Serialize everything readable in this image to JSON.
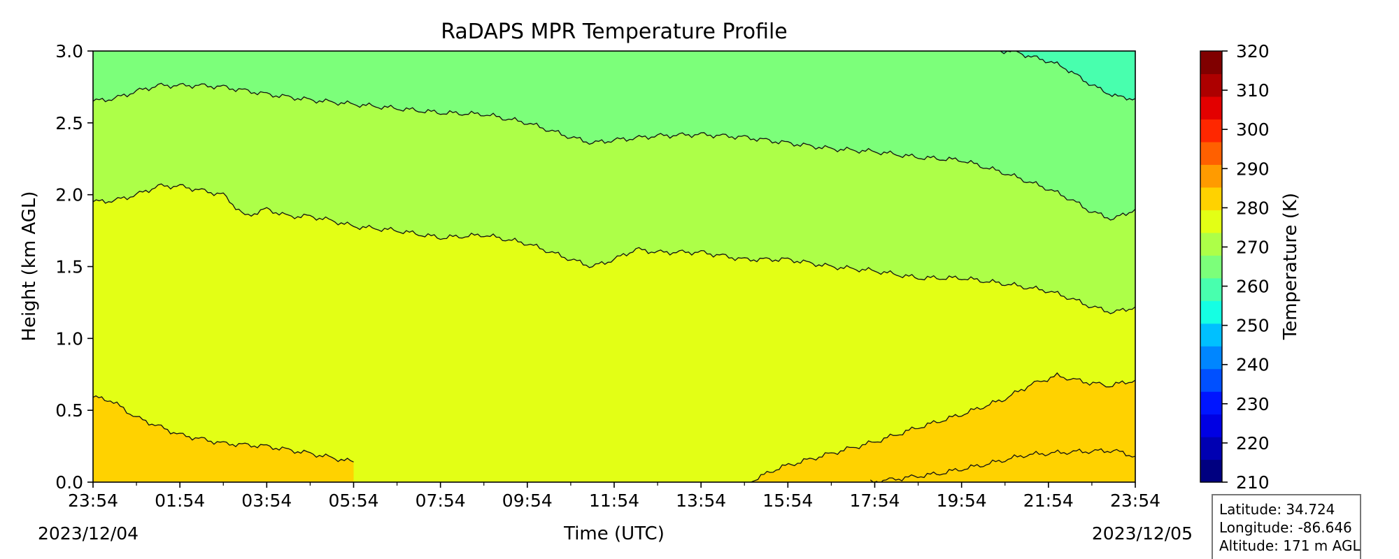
{
  "chart_data": {
    "type": "heatmap",
    "title": "RaDAPS MPR Temperature Profile",
    "xlabel": "Time (UTC)",
    "ylabel": "Height (km AGL)",
    "x_ticks": [
      "23:54",
      "01:54",
      "03:54",
      "05:54",
      "07:54",
      "09:54",
      "11:54",
      "13:54",
      "15:54",
      "17:54",
      "19:54",
      "21:54",
      "23:54"
    ],
    "x_start_date": "2023/12/04",
    "x_end_date": "2023/12/05",
    "x_range_hours": [
      0,
      24
    ],
    "y_ticks": [
      "0.0",
      "0.5",
      "1.0",
      "1.5",
      "2.0",
      "2.5",
      "3.0"
    ],
    "ylim": [
      0,
      3
    ],
    "grid": false,
    "colorbar": {
      "label": "Temperature (K)",
      "range": [
        210,
        320
      ],
      "ticks": [
        "210",
        "220",
        "230",
        "240",
        "250",
        "260",
        "270",
        "280",
        "290",
        "300",
        "310",
        "320"
      ],
      "colors": [
        "#000080",
        "#0000b2",
        "#0000e3",
        "#0015ff",
        "#0050ff",
        "#0086ff",
        "#00c0ff",
        "#15ffe3",
        "#48ffae",
        "#7cff7a",
        "#adff48",
        "#e3ff15",
        "#ffd200",
        "#ff9b00",
        "#ff6000",
        "#ff2700",
        "#e30000",
        "#ad0000",
        "#800000"
      ]
    },
    "contour_levels_K": [
      265,
      270,
      275,
      280,
      285,
      290
    ],
    "contours": [
      {
        "level": 290,
        "x": [
          17.9,
          19.5,
          20.5,
          21.5,
          22.5,
          23.5,
          24
        ],
        "y": [
          0.0,
          0.06,
          0.12,
          0.19,
          0.21,
          0.22,
          0.18
        ]
      },
      {
        "level": 285,
        "x": [
          0,
          0.4,
          1,
          2,
          3,
          4,
          5,
          6.0
        ],
        "y": [
          0.59,
          0.57,
          0.45,
          0.33,
          0.27,
          0.25,
          0.2,
          0.14
        ]
      },
      {
        "level": 285,
        "x": [
          15.1,
          15.8,
          17,
          18,
          19,
          20,
          21,
          21.6,
          22.2,
          22.8,
          23.4,
          24
        ],
        "y": [
          0.0,
          0.1,
          0.2,
          0.28,
          0.38,
          0.47,
          0.58,
          0.68,
          0.74,
          0.7,
          0.67,
          0.71
        ]
      },
      {
        "level": 280,
        "x": [
          0,
          0.5,
          1,
          1.5,
          2,
          2.5,
          3,
          3.5,
          4,
          4.5,
          5,
          5.5,
          6,
          7,
          8,
          9,
          10,
          11,
          11.5,
          12,
          12.5,
          13,
          14,
          15,
          16,
          17,
          18,
          19,
          20,
          21,
          22,
          22.5,
          23,
          23.5,
          24
        ],
        "y": [
          1.95,
          1.96,
          2.0,
          2.06,
          2.06,
          2.03,
          2.0,
          1.85,
          1.9,
          1.85,
          1.85,
          1.82,
          1.78,
          1.75,
          1.7,
          1.72,
          1.66,
          1.55,
          1.5,
          1.55,
          1.62,
          1.6,
          1.6,
          1.55,
          1.55,
          1.5,
          1.47,
          1.42,
          1.42,
          1.38,
          1.33,
          1.28,
          1.22,
          1.18,
          1.22
        ]
      },
      {
        "level": 275,
        "x": [
          0,
          0.5,
          1,
          1.5,
          2,
          2.5,
          3,
          4,
          5,
          6,
          7,
          8,
          9,
          10,
          11,
          11.5,
          12,
          13,
          14,
          15,
          16,
          17,
          18,
          19,
          20,
          21,
          22,
          22.5,
          23,
          23.5,
          24
        ],
        "y": [
          2.65,
          2.67,
          2.72,
          2.76,
          2.76,
          2.76,
          2.75,
          2.7,
          2.66,
          2.63,
          2.6,
          2.57,
          2.56,
          2.5,
          2.4,
          2.36,
          2.38,
          2.41,
          2.42,
          2.4,
          2.36,
          2.32,
          2.3,
          2.26,
          2.24,
          2.15,
          2.04,
          1.97,
          1.88,
          1.83,
          1.9
        ]
      },
      {
        "level": 270,
        "x": [
          20.9,
          21.2,
          21.6,
          22,
          22.4,
          22.8,
          23.2,
          23.6,
          24
        ],
        "y": [
          3.0,
          3.0,
          2.96,
          2.93,
          2.88,
          2.8,
          2.73,
          2.68,
          2.67
        ]
      }
    ],
    "regions_K": [
      {
        "level": 280,
        "x": [
          0,
          0.4,
          1,
          2,
          3,
          4,
          5,
          6.0
        ],
        "y_top": [
          0.59,
          0.57,
          0.45,
          0.33,
          0.27,
          0.25,
          0.2,
          0.14
        ]
      },
      {
        "level": 280,
        "x": [
          15.1,
          15.8,
          17,
          18,
          19,
          20,
          21,
          21.6,
          22.2,
          22.8,
          23.4,
          24
        ],
        "y_top": [
          0.0,
          0.1,
          0.2,
          0.28,
          0.38,
          0.47,
          0.58,
          0.68,
          0.74,
          0.7,
          0.67,
          0.71
        ]
      },
      {
        "level": 285,
        "x": [
          17.9,
          19.5,
          20.5,
          21.5,
          22.5,
          23.5,
          24
        ],
        "y_top": [
          0.0,
          0.06,
          0.12,
          0.19,
          0.21,
          0.22,
          0.18
        ]
      },
      {
        "level": 270,
        "x": [
          0,
          0.5,
          1,
          1.5,
          2,
          2.5,
          3,
          3.5,
          4,
          4.5,
          5,
          5.5,
          6,
          7,
          8,
          9,
          10,
          11,
          11.5,
          12,
          12.5,
          13,
          14,
          15,
          16,
          17,
          18,
          19,
          20,
          21,
          22,
          22.5,
          23,
          23.5,
          24
        ],
        "y_bottom": [
          1.95,
          1.96,
          2.0,
          2.06,
          2.06,
          2.03,
          2.0,
          1.85,
          1.9,
          1.85,
          1.85,
          1.82,
          1.78,
          1.75,
          1.7,
          1.72,
          1.66,
          1.55,
          1.5,
          1.55,
          1.62,
          1.6,
          1.6,
          1.55,
          1.55,
          1.5,
          1.47,
          1.42,
          1.42,
          1.38,
          1.33,
          1.28,
          1.22,
          1.18,
          1.22
        ]
      },
      {
        "level": 265,
        "x": [
          0,
          0.5,
          1,
          1.5,
          2,
          2.5,
          3,
          4,
          5,
          6,
          7,
          8,
          9,
          10,
          11,
          11.5,
          12,
          13,
          14,
          15,
          16,
          17,
          18,
          19,
          20,
          21,
          22,
          22.5,
          23,
          23.5,
          24
        ],
        "y_bottom": [
          2.65,
          2.67,
          2.72,
          2.76,
          2.76,
          2.76,
          2.75,
          2.7,
          2.66,
          2.63,
          2.6,
          2.57,
          2.56,
          2.5,
          2.4,
          2.36,
          2.38,
          2.41,
          2.42,
          2.4,
          2.36,
          2.32,
          2.3,
          2.26,
          2.24,
          2.15,
          2.04,
          1.97,
          1.88,
          1.83,
          1.9
        ]
      },
      {
        "level": 260,
        "x": [
          20.9,
          21.2,
          21.6,
          22,
          22.4,
          22.8,
          23.2,
          23.6,
          24
        ],
        "y_bottom": [
          3.0,
          3.0,
          2.96,
          2.93,
          2.88,
          2.8,
          2.73,
          2.68,
          2.67
        ]
      }
    ],
    "background_level_K": 275
  },
  "info_box": {
    "latitude": "Latitude: 34.724",
    "longitude": "Longitude: -86.646",
    "altitude": "Altitude: 171 m AGL"
  }
}
